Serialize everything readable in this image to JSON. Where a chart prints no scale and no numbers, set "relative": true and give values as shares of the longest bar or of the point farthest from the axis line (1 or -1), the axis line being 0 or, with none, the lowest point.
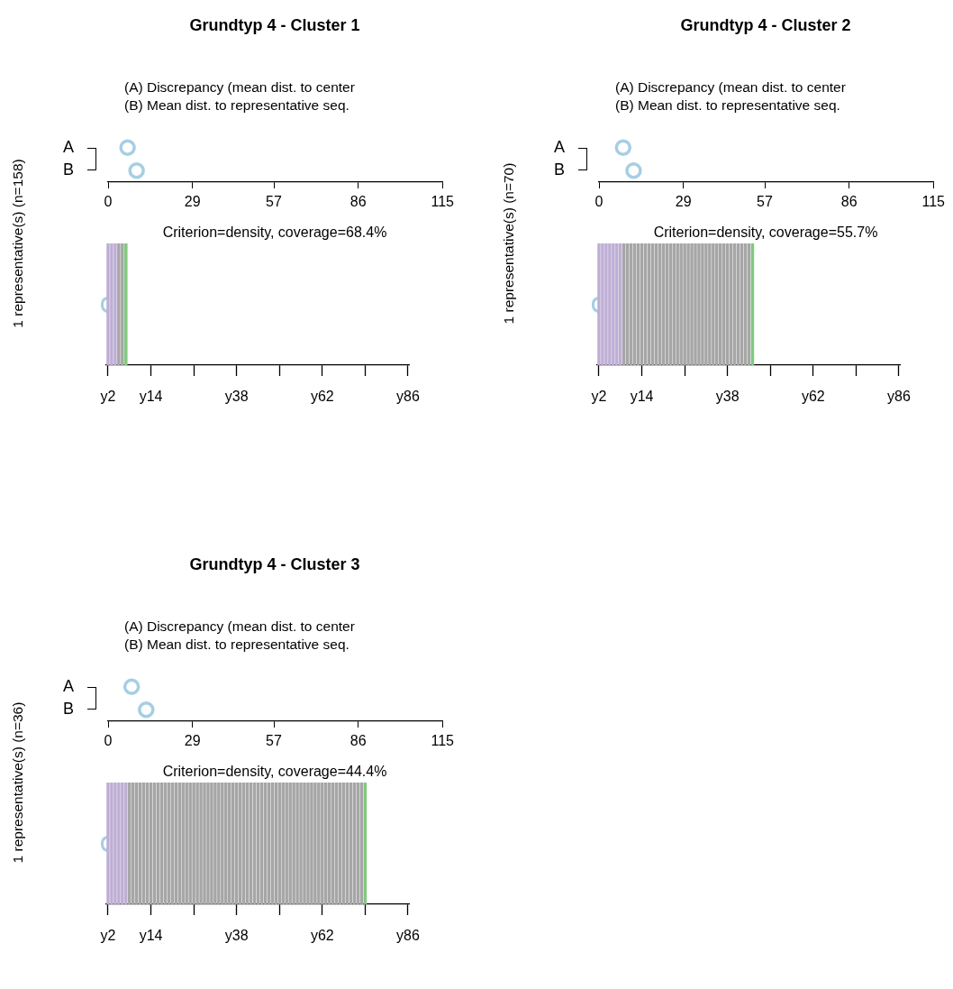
{
  "chart_data": [
    {
      "type": "scatter",
      "title": "Grundtyp 4 - Cluster 1",
      "annotations": [
        "(A) Discrepancy (mean dist. to center",
        "(B) Mean dist. to representative seq."
      ],
      "orientation": "horizontal",
      "categories": [
        "A",
        "B"
      ],
      "values": [
        6.7,
        9.8
      ],
      "color": "#a6cee3",
      "xlim": [
        0,
        115
      ],
      "xticks": [
        0,
        29,
        57,
        86,
        115
      ],
      "marker": "circle",
      "grid": false,
      "legend": false
    },
    {
      "type": "bar",
      "relative": true,
      "title": "Criterion=density, coverage=68.4%",
      "ylabel": "1 representative(s) (n=158)",
      "categories": [
        "y2",
        null,
        null,
        null,
        null,
        null,
        null,
        null,
        null,
        null,
        null,
        null,
        "y14",
        null,
        null,
        null,
        null,
        null,
        null,
        null,
        null,
        null,
        null,
        null,
        null,
        null,
        null,
        null,
        null,
        null,
        null,
        null,
        null,
        null,
        null,
        null,
        "y38",
        null,
        null,
        null,
        null,
        null,
        null,
        null,
        null,
        null,
        null,
        null,
        null,
        null,
        null,
        null,
        null,
        null,
        null,
        null,
        null,
        null,
        null,
        null,
        "y62",
        null,
        null,
        null,
        null,
        null,
        null,
        null,
        null,
        null,
        null,
        null,
        null,
        null,
        null,
        null,
        null,
        null,
        null,
        null,
        null,
        null,
        null,
        null,
        "y86"
      ],
      "values": [
        1,
        1,
        1,
        1,
        1,
        1,
        null,
        null,
        null,
        null,
        null,
        null,
        null,
        null,
        null,
        null,
        null,
        null,
        null,
        null,
        null,
        null,
        null,
        null,
        null,
        null,
        null,
        null,
        null,
        null,
        null,
        null,
        null,
        null,
        null,
        null,
        null,
        null,
        null,
        null,
        null,
        null,
        null,
        null,
        null,
        null,
        null,
        null,
        null,
        null,
        null,
        null,
        null,
        null,
        null,
        null,
        null,
        null,
        null,
        null,
        null,
        null,
        null,
        null,
        null,
        null,
        null,
        null,
        null,
        null,
        null,
        null,
        null,
        null,
        null,
        null,
        null,
        null,
        null,
        null,
        null,
        null,
        null,
        null,
        null
      ],
      "colors": [
        "#beaed4",
        "#beaed4",
        "#beaed4",
        "#a6a6a6",
        "#a6a6a6",
        "#7fc97f",
        null,
        null,
        null,
        null,
        null,
        null,
        null,
        null,
        null,
        null,
        null,
        null,
        null,
        null,
        null,
        null,
        null,
        null,
        null,
        null,
        null,
        null,
        null,
        null,
        null,
        null,
        null,
        null,
        null,
        null,
        null,
        null,
        null,
        null,
        null,
        null,
        null,
        null,
        null,
        null,
        null,
        null,
        null,
        null,
        null,
        null,
        null,
        null,
        null,
        null,
        null,
        null,
        null,
        null,
        null,
        null,
        null,
        null,
        null,
        null,
        null,
        null,
        null,
        null,
        null,
        null,
        null,
        null,
        null,
        null,
        null,
        null,
        null,
        null,
        null,
        null,
        null,
        null,
        null
      ],
      "grid": false,
      "legend": false
    },
    {
      "type": "scatter",
      "title": "Grundtyp 4 - Cluster 2",
      "annotations": [
        "(A) Discrepancy (mean dist. to center",
        "(B) Mean dist. to representative seq."
      ],
      "orientation": "horizontal",
      "categories": [
        "A",
        "B"
      ],
      "values": [
        8.3,
        11.9
      ],
      "color": "#a6cee3",
      "xlim": [
        0,
        115
      ],
      "xticks": [
        0,
        29,
        57,
        86,
        115
      ],
      "marker": "circle",
      "grid": false,
      "legend": false
    },
    {
      "type": "bar",
      "relative": true,
      "title": "Criterion=density, coverage=55.7%",
      "ylabel": "1 representative(s) (n=70)",
      "categories": [
        "y2",
        null,
        null,
        null,
        null,
        null,
        null,
        null,
        null,
        null,
        null,
        null,
        "y14",
        null,
        null,
        null,
        null,
        null,
        null,
        null,
        null,
        null,
        null,
        null,
        null,
        null,
        null,
        null,
        null,
        null,
        null,
        null,
        null,
        null,
        null,
        null,
        "y38",
        null,
        null,
        null,
        null,
        null,
        null,
        null,
        null,
        null,
        null,
        null,
        null,
        null,
        null,
        null,
        null,
        null,
        null,
        null,
        null,
        null,
        null,
        null,
        "y62",
        null,
        null,
        null,
        null,
        null,
        null,
        null,
        null,
        null,
        null,
        null,
        null,
        null,
        null,
        null,
        null,
        null,
        null,
        null,
        null,
        null,
        null,
        null,
        "y86"
      ],
      "values": [
        1,
        1,
        1,
        1,
        1,
        1,
        1,
        1,
        1,
        1,
        1,
        1,
        1,
        1,
        1,
        1,
        1,
        1,
        1,
        1,
        1,
        1,
        1,
        1,
        1,
        1,
        1,
        1,
        1,
        1,
        1,
        1,
        1,
        1,
        1,
        1,
        1,
        1,
        1,
        1,
        1,
        1,
        1,
        1,
        null,
        null,
        null,
        null,
        null,
        null,
        null,
        null,
        null,
        null,
        null,
        null,
        null,
        null,
        null,
        null,
        null,
        null,
        null,
        null,
        null,
        null,
        null,
        null,
        null,
        null,
        null,
        null,
        null,
        null,
        null,
        null,
        null,
        null,
        null,
        null,
        null,
        null,
        null,
        null,
        null
      ],
      "colors": [
        "#beaed4",
        "#beaed4",
        "#beaed4",
        "#beaed4",
        "#beaed4",
        "#beaed4",
        "#beaed4",
        "#a6a6a6",
        "#a6a6a6",
        "#a6a6a6",
        "#a6a6a6",
        "#a6a6a6",
        "#a6a6a6",
        "#a6a6a6",
        "#a6a6a6",
        "#a6a6a6",
        "#a6a6a6",
        "#a6a6a6",
        "#a6a6a6",
        "#a6a6a6",
        "#a6a6a6",
        "#a6a6a6",
        "#a6a6a6",
        "#a6a6a6",
        "#a6a6a6",
        "#a6a6a6",
        "#a6a6a6",
        "#a6a6a6",
        "#a6a6a6",
        "#a6a6a6",
        "#a6a6a6",
        "#a6a6a6",
        "#a6a6a6",
        "#a6a6a6",
        "#a6a6a6",
        "#a6a6a6",
        "#a6a6a6",
        "#a6a6a6",
        "#a6a6a6",
        "#a6a6a6",
        "#a6a6a6",
        "#a6a6a6",
        "#a6a6a6",
        "#7fc97f",
        null,
        null,
        null,
        null,
        null,
        null,
        null,
        null,
        null,
        null,
        null,
        null,
        null,
        null,
        null,
        null,
        null,
        null,
        null,
        null,
        null,
        null,
        null,
        null,
        null,
        null,
        null,
        null,
        null,
        null,
        null,
        null,
        null,
        null,
        null,
        null,
        null,
        null,
        null,
        null,
        null
      ],
      "grid": false,
      "legend": false
    },
    {
      "type": "scatter",
      "title": "Grundtyp 4 - Cluster 3",
      "annotations": [
        "(A) Discrepancy (mean dist. to center",
        "(B) Mean dist. to representative seq."
      ],
      "orientation": "horizontal",
      "categories": [
        "A",
        "B"
      ],
      "values": [
        8.1,
        13.1
      ],
      "color": "#a6cee3",
      "xlim": [
        0,
        115
      ],
      "xticks": [
        0,
        29,
        57,
        86,
        115
      ],
      "marker": "circle",
      "grid": false,
      "legend": false
    },
    {
      "type": "bar",
      "relative": true,
      "title": "Criterion=density, coverage=44.4%",
      "ylabel": "1 representative(s) (n=36)",
      "categories": [
        "y2",
        null,
        null,
        null,
        null,
        null,
        null,
        null,
        null,
        null,
        null,
        null,
        "y14",
        null,
        null,
        null,
        null,
        null,
        null,
        null,
        null,
        null,
        null,
        null,
        null,
        null,
        null,
        null,
        null,
        null,
        null,
        null,
        null,
        null,
        null,
        null,
        "y38",
        null,
        null,
        null,
        null,
        null,
        null,
        null,
        null,
        null,
        null,
        null,
        null,
        null,
        null,
        null,
        null,
        null,
        null,
        null,
        null,
        null,
        null,
        null,
        "y62",
        null,
        null,
        null,
        null,
        null,
        null,
        null,
        null,
        null,
        null,
        null,
        null,
        null,
        null,
        null,
        null,
        null,
        null,
        null,
        null,
        null,
        null,
        null,
        "y86"
      ],
      "values": [
        1,
        1,
        1,
        1,
        1,
        1,
        1,
        1,
        1,
        1,
        1,
        1,
        1,
        1,
        1,
        1,
        1,
        1,
        1,
        1,
        1,
        1,
        1,
        1,
        1,
        1,
        1,
        1,
        1,
        1,
        1,
        1,
        1,
        1,
        1,
        1,
        1,
        1,
        1,
        1,
        1,
        1,
        1,
        1,
        1,
        1,
        1,
        1,
        1,
        1,
        1,
        1,
        1,
        1,
        1,
        1,
        1,
        1,
        1,
        1,
        1,
        1,
        1,
        1,
        1,
        1,
        1,
        1,
        1,
        1,
        1,
        1,
        1,
        null,
        null,
        null,
        null,
        null,
        null,
        null,
        null,
        null,
        null,
        null,
        null
      ],
      "colors": [
        "#beaed4",
        "#beaed4",
        "#beaed4",
        "#beaed4",
        "#beaed4",
        "#beaed4",
        "#a6a6a6",
        "#a6a6a6",
        "#a6a6a6",
        "#a6a6a6",
        "#a6a6a6",
        "#a6a6a6",
        "#a6a6a6",
        "#a6a6a6",
        "#a6a6a6",
        "#a6a6a6",
        "#a6a6a6",
        "#a6a6a6",
        "#a6a6a6",
        "#a6a6a6",
        "#a6a6a6",
        "#a6a6a6",
        "#a6a6a6",
        "#a6a6a6",
        "#a6a6a6",
        "#a6a6a6",
        "#a6a6a6",
        "#a6a6a6",
        "#a6a6a6",
        "#a6a6a6",
        "#a6a6a6",
        "#a6a6a6",
        "#a6a6a6",
        "#a6a6a6",
        "#a6a6a6",
        "#a6a6a6",
        "#a6a6a6",
        "#a6a6a6",
        "#a6a6a6",
        "#a6a6a6",
        "#a6a6a6",
        "#a6a6a6",
        "#a6a6a6",
        "#a6a6a6",
        "#a6a6a6",
        "#a6a6a6",
        "#a6a6a6",
        "#a6a6a6",
        "#a6a6a6",
        "#a6a6a6",
        "#a6a6a6",
        "#a6a6a6",
        "#a6a6a6",
        "#a6a6a6",
        "#a6a6a6",
        "#a6a6a6",
        "#a6a6a6",
        "#a6a6a6",
        "#a6a6a6",
        "#a6a6a6",
        "#a6a6a6",
        "#a6a6a6",
        "#a6a6a6",
        "#a6a6a6",
        "#a6a6a6",
        "#a6a6a6",
        "#a6a6a6",
        "#a6a6a6",
        "#a6a6a6",
        "#a6a6a6",
        "#a6a6a6",
        "#a6a6a6",
        "#7fc97f",
        null,
        null,
        null,
        null,
        null,
        null,
        null,
        null,
        null,
        null,
        null,
        null
      ],
      "grid": false,
      "legend": false
    }
  ]
}
